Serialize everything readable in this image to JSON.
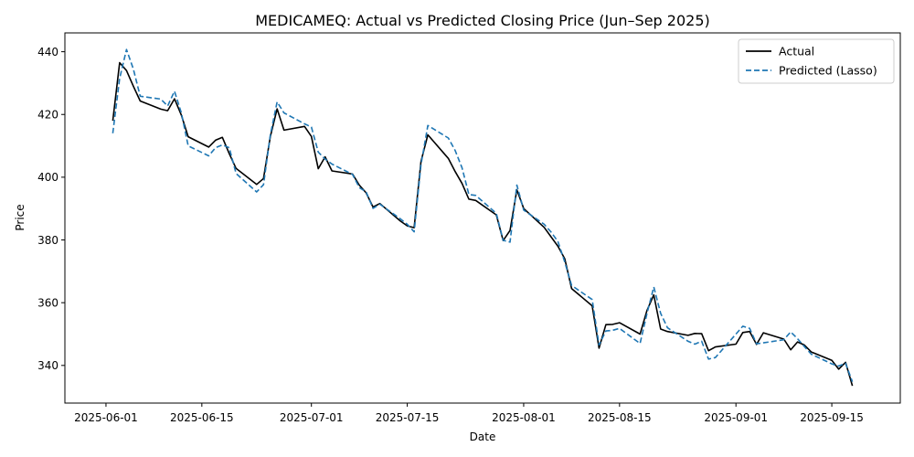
{
  "chart_data": {
    "type": "line",
    "title": "MEDICAMEQ: Actual vs Predicted Closing Price (Jun–Sep 2025)",
    "xlabel": "Date",
    "ylabel": "Price",
    "xlim": [
      "2025-05-26",
      "2025-09-25"
    ],
    "ylim": [
      328,
      446
    ],
    "x_ticks": [
      "2025-06-01",
      "2025-06-15",
      "2025-07-01",
      "2025-07-15",
      "2025-08-01",
      "2025-08-15",
      "2025-09-01",
      "2025-09-15"
    ],
    "y_ticks": [
      340,
      360,
      380,
      400,
      420,
      440
    ],
    "grid": false,
    "legend_position": "top-right",
    "x": [
      "2025-06-02",
      "2025-06-03",
      "2025-06-04",
      "2025-06-05",
      "2025-06-06",
      "2025-06-09",
      "2025-06-10",
      "2025-06-11",
      "2025-06-12",
      "2025-06-13",
      "2025-06-16",
      "2025-06-17",
      "2025-06-18",
      "2025-06-19",
      "2025-06-20",
      "2025-06-23",
      "2025-06-24",
      "2025-06-25",
      "2025-06-26",
      "2025-06-27",
      "2025-06-30",
      "2025-07-01",
      "2025-07-02",
      "2025-07-03",
      "2025-07-04",
      "2025-07-07",
      "2025-07-08",
      "2025-07-09",
      "2025-07-10",
      "2025-07-11",
      "2025-07-14",
      "2025-07-15",
      "2025-07-16",
      "2025-07-17",
      "2025-07-18",
      "2025-07-21",
      "2025-07-22",
      "2025-07-23",
      "2025-07-24",
      "2025-07-25",
      "2025-07-28",
      "2025-07-29",
      "2025-07-30",
      "2025-07-31",
      "2025-08-01",
      "2025-08-04",
      "2025-08-05",
      "2025-08-06",
      "2025-08-07",
      "2025-08-08",
      "2025-08-11",
      "2025-08-12",
      "2025-08-13",
      "2025-08-14",
      "2025-08-15",
      "2025-08-18",
      "2025-08-19",
      "2025-08-20",
      "2025-08-21",
      "2025-08-22",
      "2025-08-25",
      "2025-08-26",
      "2025-08-27",
      "2025-08-28",
      "2025-08-29",
      "2025-09-01",
      "2025-09-02",
      "2025-09-03",
      "2025-09-04",
      "2025-09-05",
      "2025-09-08",
      "2025-09-09",
      "2025-09-10",
      "2025-09-11",
      "2025-09-12",
      "2025-09-15",
      "2025-09-16",
      "2025-09-17",
      "2025-09-18"
    ],
    "series": [
      {
        "name": "Actual",
        "color": "#000000",
        "style": "solid",
        "values": [
          418.0,
          436.5,
          434.0,
          429.0,
          424.3,
          421.7,
          421.2,
          425.0,
          419.8,
          412.9,
          409.6,
          411.8,
          412.7,
          407.5,
          402.8,
          397.7,
          399.6,
          413.0,
          421.8,
          415.0,
          416.2,
          413.0,
          402.7,
          406.5,
          402.0,
          401.0,
          397.5,
          395.0,
          390.5,
          391.6,
          386.0,
          384.5,
          383.9,
          405.0,
          413.5,
          406.0,
          401.8,
          398.0,
          393.0,
          392.6,
          388.0,
          379.8,
          383.0,
          396.0,
          390.0,
          384.0,
          381.0,
          378.0,
          374.0,
          364.5,
          359.0,
          345.5,
          353.0,
          353.1,
          353.6,
          350.0,
          357.5,
          362.5,
          351.6,
          350.8,
          349.6,
          350.2,
          350.1,
          344.7,
          345.9,
          346.8,
          350.5,
          350.8,
          346.7,
          350.4,
          348.4,
          345.0,
          347.5,
          346.5,
          344.3,
          341.6,
          338.8,
          341.0,
          333.5
        ]
      },
      {
        "name": "Predicted (Lasso)",
        "color": "#1f77b4",
        "style": "dashed",
        "values": [
          414.0,
          431.5,
          440.7,
          434.5,
          425.8,
          424.9,
          422.7,
          427.4,
          420.5,
          410.0,
          406.8,
          409.4,
          410.3,
          409.4,
          401.2,
          395.3,
          397.6,
          413.5,
          424.0,
          420.5,
          417.0,
          416.0,
          408.0,
          405.8,
          404.2,
          400.9,
          396.7,
          395.3,
          390.1,
          391.4,
          386.7,
          385.0,
          382.6,
          404.0,
          416.5,
          412.5,
          408.5,
          403.0,
          394.5,
          394.2,
          388.5,
          379.9,
          379.3,
          397.5,
          389.5,
          385.0,
          382.5,
          379.5,
          373.0,
          365.5,
          361.0,
          346.5,
          351.0,
          351.2,
          351.8,
          347.0,
          356.5,
          365.0,
          356.6,
          352.0,
          347.7,
          346.8,
          347.7,
          342.0,
          342.5,
          350.0,
          352.5,
          351.8,
          346.9,
          347.2,
          348.2,
          350.7,
          348.5,
          346.0,
          343.6,
          340.5,
          339.8,
          340.7,
          334.8
        ]
      }
    ]
  }
}
